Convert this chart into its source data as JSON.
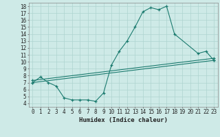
{
  "xlabel": "Humidex (Indice chaleur)",
  "bg_color": "#ceeae7",
  "grid_color": "#aed4d0",
  "line_color": "#1a7a6e",
  "xlim": [
    -0.5,
    23.5
  ],
  "ylim": [
    3.5,
    18.5
  ],
  "xticks": [
    0,
    1,
    2,
    3,
    4,
    5,
    6,
    7,
    8,
    9,
    10,
    11,
    12,
    13,
    14,
    15,
    16,
    17,
    18,
    19,
    20,
    21,
    22,
    23
  ],
  "yticks": [
    4,
    5,
    6,
    7,
    8,
    9,
    10,
    11,
    12,
    13,
    14,
    15,
    16,
    17,
    18
  ],
  "line1_x": [
    0,
    1,
    2,
    3,
    4,
    5,
    6,
    7,
    8,
    9,
    10,
    11,
    12,
    13,
    14,
    15,
    16,
    17,
    18,
    21,
    22,
    23
  ],
  "line1_y": [
    7.0,
    7.8,
    7.0,
    6.5,
    4.8,
    4.5,
    4.5,
    4.5,
    4.3,
    5.5,
    9.5,
    11.5,
    13.0,
    15.0,
    17.2,
    17.8,
    17.5,
    18.0,
    14.0,
    11.2,
    11.5,
    10.2
  ],
  "line2_x": [
    0,
    23
  ],
  "line2_y": [
    7.0,
    10.2
  ],
  "line3_x": [
    0,
    23
  ],
  "line3_y": [
    7.3,
    10.5
  ],
  "xlabel_fontsize": 6.5,
  "tick_fontsize": 5.5
}
